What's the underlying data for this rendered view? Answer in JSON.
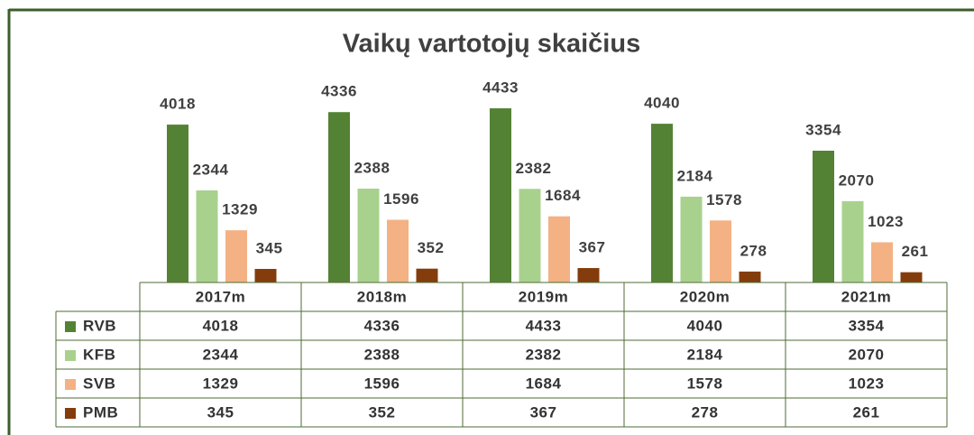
{
  "chart_data": {
    "type": "bar",
    "title": "Vaikų vartotojų skaičius",
    "categories": [
      "2017m",
      "2018m",
      "2019m",
      "2020m",
      "2021m"
    ],
    "series": [
      {
        "name": "RVB",
        "color": "#548235",
        "values": [
          4018,
          4336,
          4433,
          4040,
          3354
        ]
      },
      {
        "name": "KFB",
        "color": "#a9d18e",
        "values": [
          2344,
          2388,
          2382,
          2184,
          2070
        ]
      },
      {
        "name": "SVB",
        "color": "#f4b183",
        "values": [
          1329,
          1596,
          1684,
          1578,
          1023
        ]
      },
      {
        "name": "PMB",
        "color": "#843c0c",
        "values": [
          345,
          352,
          367,
          278,
          261
        ]
      }
    ]
  }
}
